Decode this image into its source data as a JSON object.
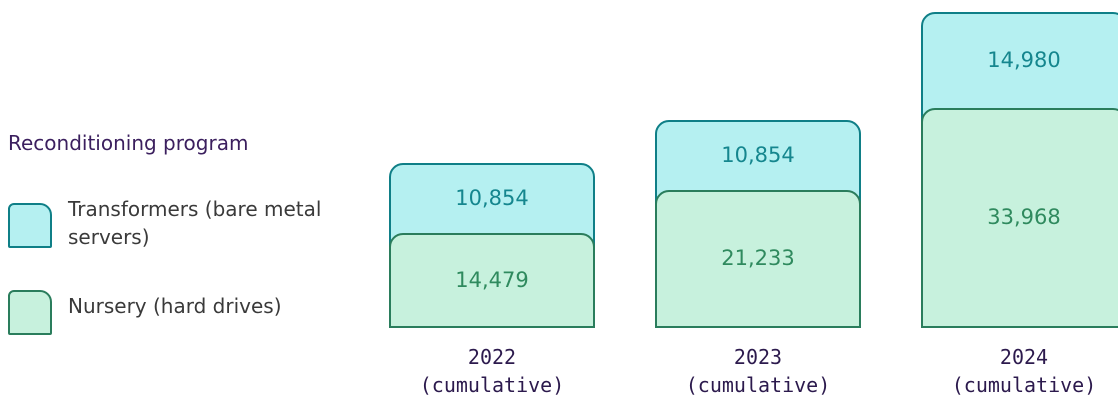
{
  "chart_data": {
    "type": "stacked-bar",
    "legend_title": "Reconditioning program",
    "legend": "left",
    "categories": [
      "2022 (cumulative)",
      "2023 (cumulative)",
      "2024 (cumulative)"
    ],
    "series": [
      {
        "name": "Transformers (bare metal servers)",
        "color": "#b5f0f1",
        "stroke": "#0f7f87",
        "text_color": "#15868e",
        "values": [
          10854,
          10854,
          14980
        ],
        "value_labels": [
          "10,854",
          "10,854",
          "14,980"
        ]
      },
      {
        "name": "Nursery (hard drives)",
        "color": "#c7f1dd",
        "stroke": "#2a7d5c",
        "text_color": "#2f8a5e",
        "values": [
          14479,
          21233,
          33968
        ],
        "value_labels": [
          "14,479",
          "21,233",
          "33,968"
        ]
      }
    ]
  }
}
